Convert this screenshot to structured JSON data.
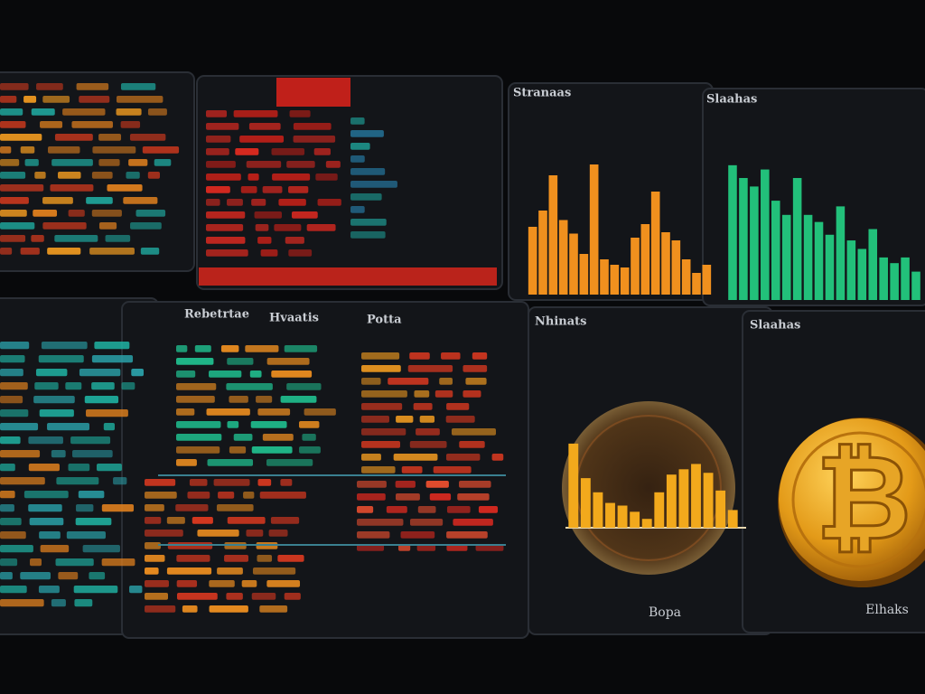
{
  "orange_chart": {
    "type": "bar",
    "title": "Stranaas",
    "color": "#f0901e",
    "ylim": [
      0,
      100
    ],
    "values": [
      50,
      62,
      88,
      55,
      45,
      30,
      96,
      26,
      22,
      20,
      42,
      52,
      76,
      46,
      40,
      26,
      16,
      22
    ]
  },
  "green_chart": {
    "type": "bar",
    "title": "Slaahas",
    "color": "#22c07a",
    "ylim": [
      0,
      100
    ],
    "values": [
      95,
      86,
      80,
      92,
      70,
      60,
      86,
      60,
      55,
      46,
      66,
      42,
      36,
      50,
      30,
      26,
      30,
      20
    ]
  },
  "table": {
    "headers": [
      "Rebetrtae",
      "Hvaatis",
      "Potta"
    ]
  },
  "gold_chart": {
    "type": "bar",
    "title": "Nhinats",
    "caption": "Bopa",
    "color": "#f2a91c",
    "ylim": [
      0,
      100
    ],
    "values": [
      95,
      56,
      40,
      28,
      25,
      18,
      10,
      40,
      60,
      66,
      72,
      62,
      42,
      20
    ]
  },
  "coin": {
    "title": "Slaahas",
    "caption": "Elhaks",
    "symbol": "₿"
  }
}
